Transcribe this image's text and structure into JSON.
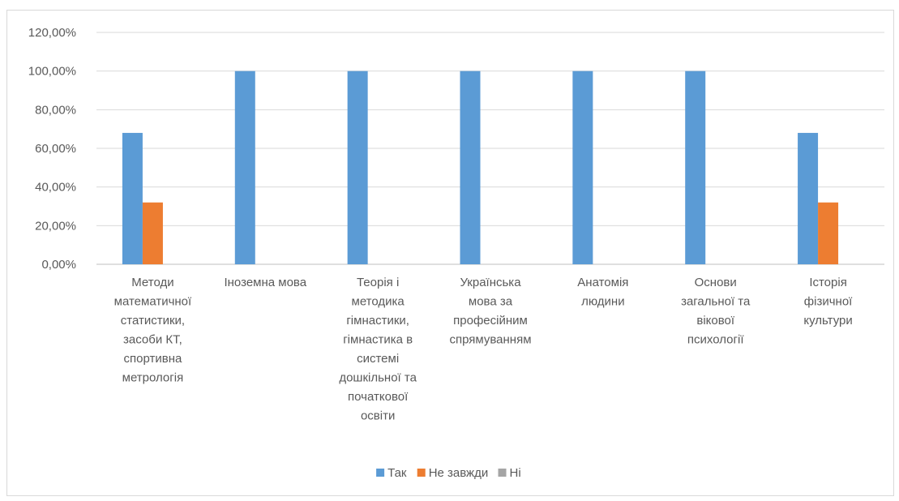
{
  "chart_data": {
    "type": "bar",
    "title": "",
    "xlabel": "",
    "ylabel": "",
    "ylim": [
      0,
      120
    ],
    "y_ticks": [
      "0,00%",
      "20,00%",
      "40,00%",
      "60,00%",
      "80,00%",
      "100,00%",
      "120,00%"
    ],
    "grid": true,
    "legend_position": "bottom",
    "categories": [
      [
        "Методи",
        "математичної",
        "статистики,",
        "засоби КТ,",
        "спортивна",
        "метрологія"
      ],
      [
        "Іноземна мова"
      ],
      [
        "Теорія і",
        "методика",
        "гімнастики,",
        "гімнастика в",
        "системі",
        "дошкільної та",
        "початкової",
        "освіти"
      ],
      [
        "Українська",
        "мова за",
        "професійним",
        "спрямуванням"
      ],
      [
        "Анатомія",
        "людини"
      ],
      [
        "Основи",
        "загальної та",
        "вікової",
        "психології"
      ],
      [
        "Історія",
        "фізичної",
        "культури"
      ]
    ],
    "series": [
      {
        "name": "Так",
        "color": "#5b9bd5",
        "values": [
          68,
          100,
          100,
          100,
          100,
          100,
          68
        ]
      },
      {
        "name": "Не завжди",
        "color": "#ed7d31",
        "values": [
          32,
          0,
          0,
          0,
          0,
          0,
          32
        ]
      },
      {
        "name": "Ні",
        "color": "#a5a5a5",
        "values": [
          0,
          0,
          0,
          0,
          0,
          0,
          0
        ]
      }
    ]
  }
}
